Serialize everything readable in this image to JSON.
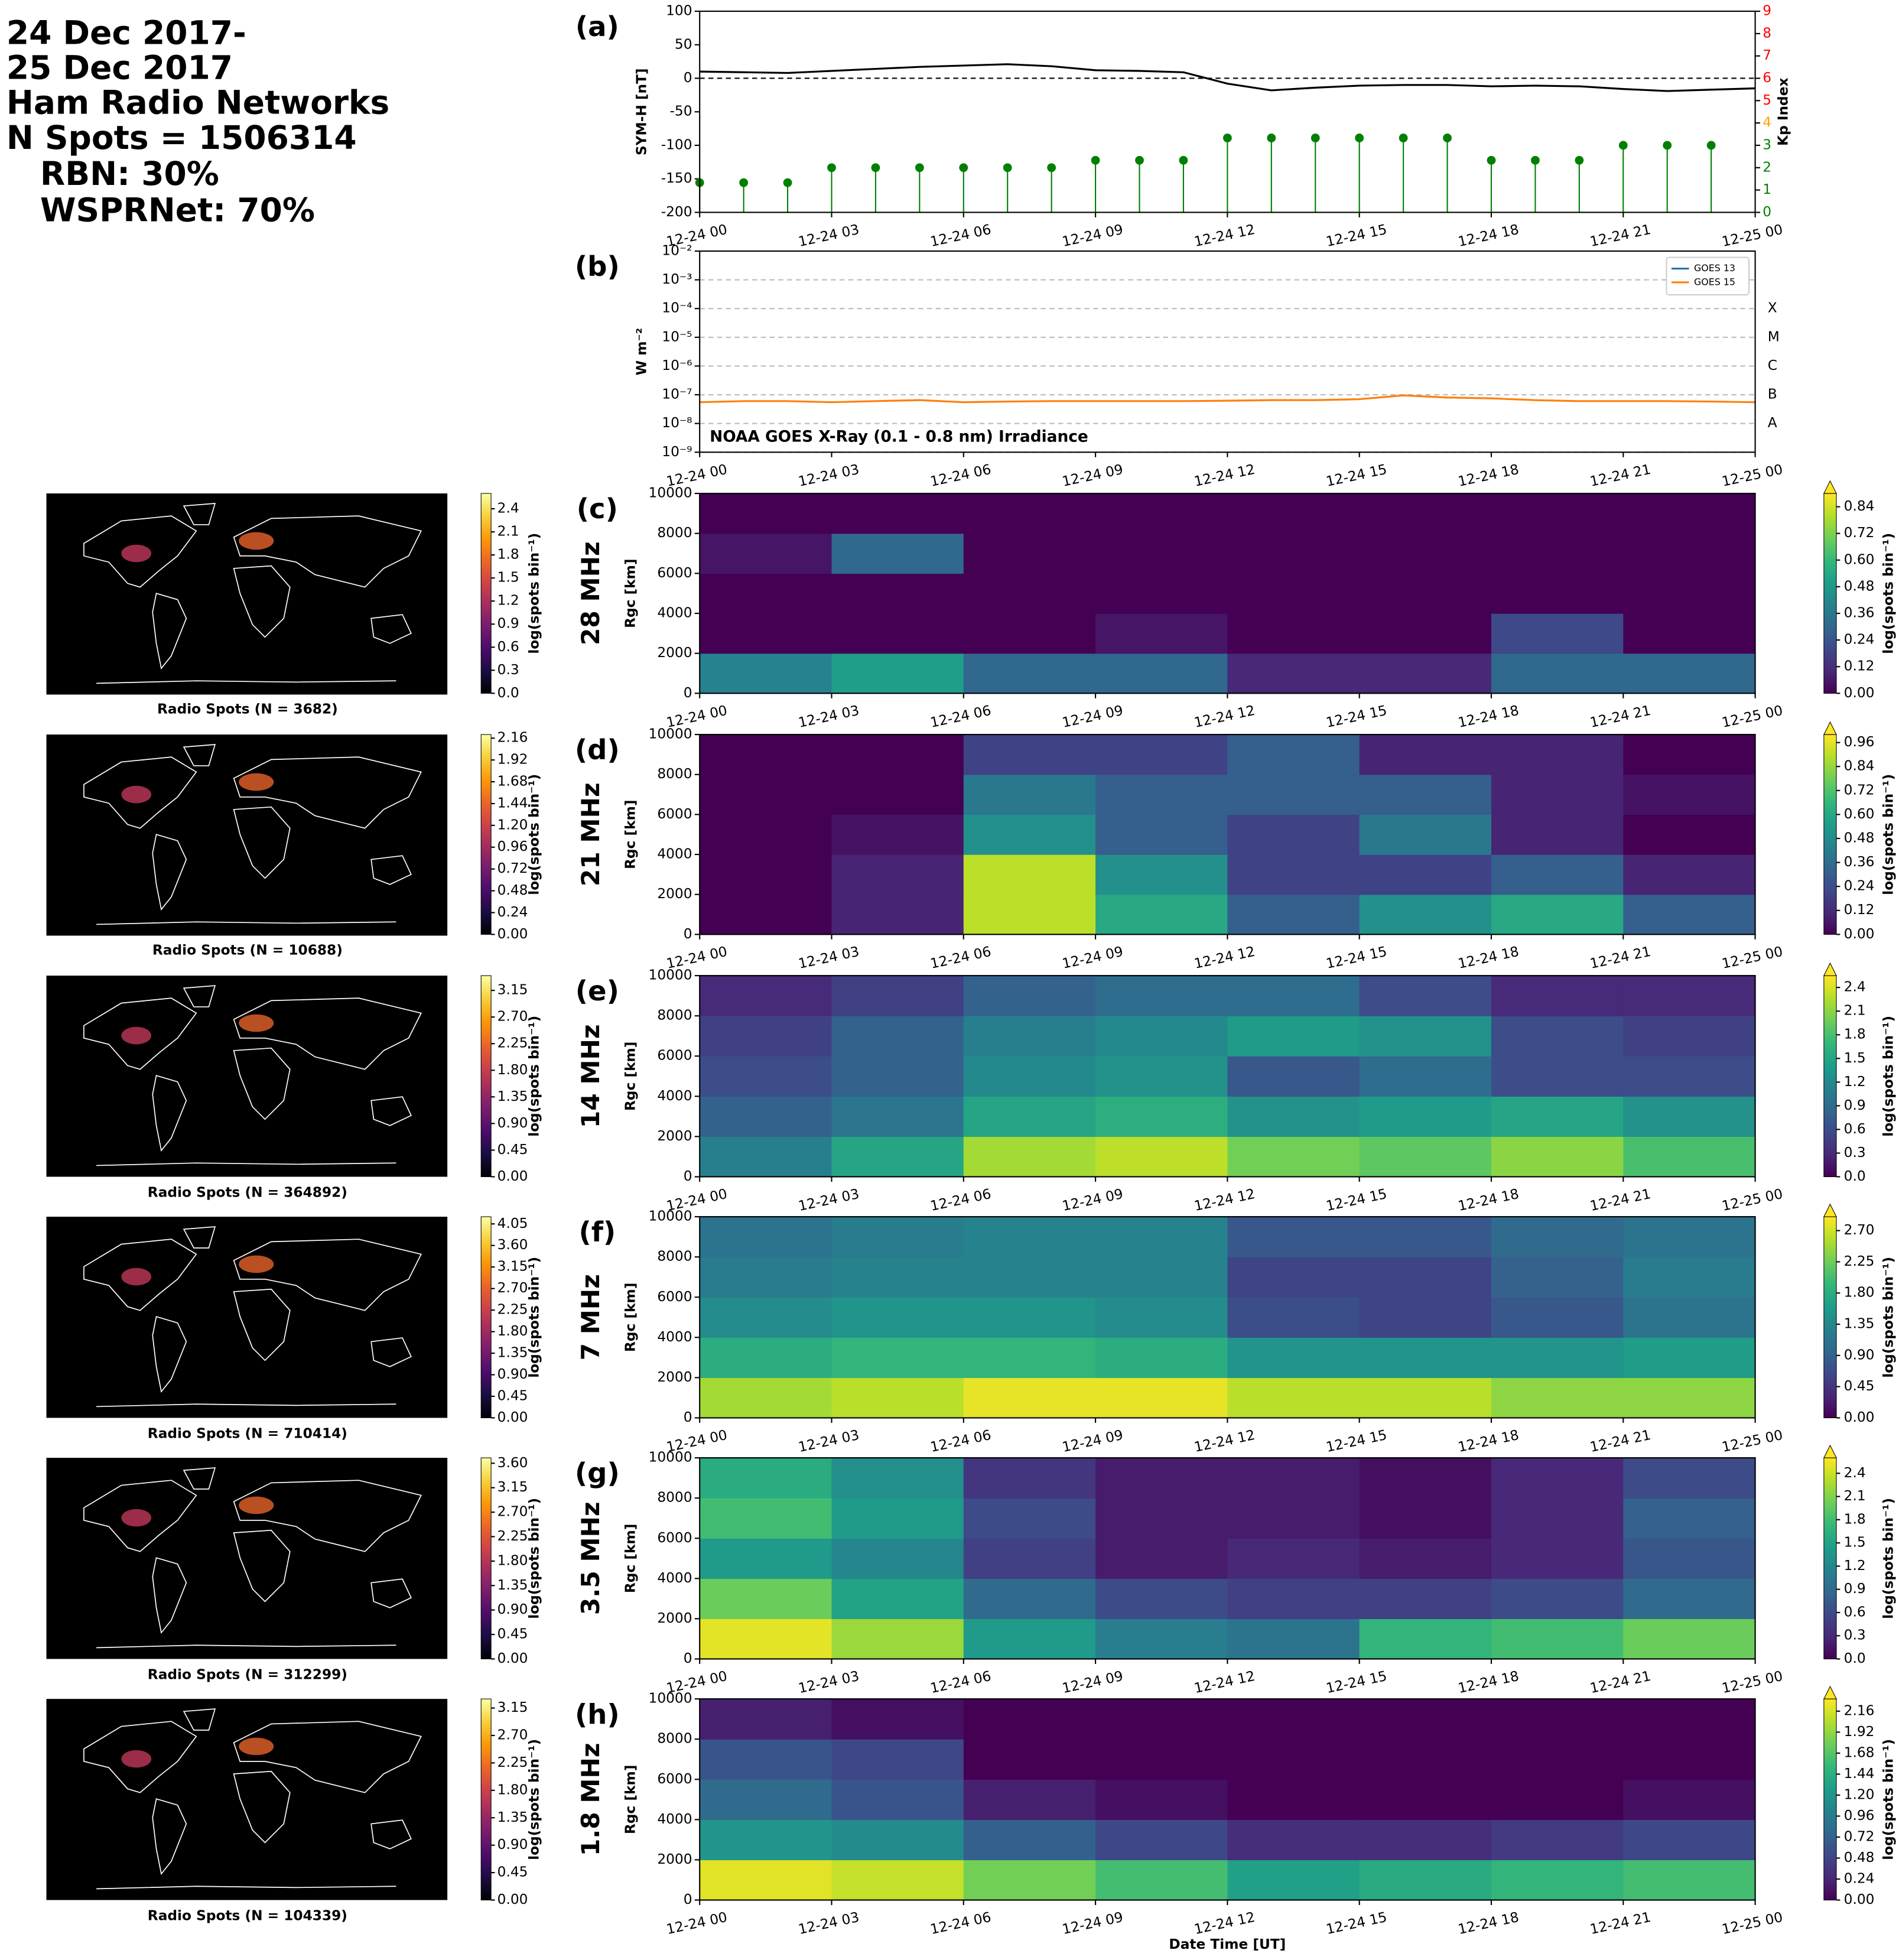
{
  "header": {
    "lines": [
      "24 Dec 2017-",
      "25 Dec 2017",
      "Ham Radio Networks",
      "N Spots = 1506314",
      "RBN: 30%",
      "WSPRNet: 70%"
    ]
  },
  "time_axis": {
    "xlim": [
      0,
      24
    ],
    "xlabel": "Date Time [UT]",
    "xticks": [
      {
        "value": 0,
        "label": "12-24 00"
      },
      {
        "value": 3,
        "label": "12-24 03"
      },
      {
        "value": 6,
        "label": "12-24 06"
      },
      {
        "value": 9,
        "label": "12-24 09"
      },
      {
        "value": 12,
        "label": "12-24 12"
      },
      {
        "value": 15,
        "label": "12-24 15"
      },
      {
        "value": 18,
        "label": "12-24 18"
      },
      {
        "value": 21,
        "label": "12-24 21"
      },
      {
        "value": 24,
        "label": "12-25 00"
      }
    ]
  },
  "chart_data": [
    {
      "type": "line",
      "label": "(a)",
      "ylabel": "SYM-H [nT]",
      "y2label": "Kp Index",
      "ylim": [
        -200,
        100
      ],
      "yticks": [
        -200,
        -150,
        -100,
        -50,
        0,
        50,
        100
      ],
      "y2lim": [
        0,
        9
      ],
      "y2ticks": [
        0,
        1,
        2,
        3,
        4,
        5,
        6,
        7,
        8,
        9
      ],
      "y2tick_colors": [
        "green",
        "green",
        "green",
        "green",
        "orange",
        "red",
        "red",
        "red",
        "red",
        "red"
      ],
      "series": [
        {
          "color": "#000000",
          "x": [
            0,
            1,
            2,
            3,
            4,
            5,
            6,
            7,
            8,
            9,
            10,
            11,
            12,
            13,
            14,
            15,
            16,
            17,
            18,
            19,
            20,
            21,
            22,
            23,
            24
          ],
          "values": [
            10,
            9,
            8,
            11,
            14,
            17,
            19,
            21,
            18,
            12,
            11,
            9,
            -8,
            -18,
            -14,
            -11,
            -10,
            -10,
            -12,
            -11,
            -12,
            -16,
            -19,
            -17,
            -15
          ]
        },
        {
          "color": "green",
          "axis": "y2",
          "x": [
            0,
            1,
            2,
            3,
            4,
            5,
            6,
            7,
            8,
            9,
            10,
            11,
            12,
            13,
            14,
            15,
            16,
            17,
            18,
            19,
            20,
            21,
            22,
            23
          ],
          "values": [
            1.33,
            1.33,
            1.33,
            2,
            2,
            2,
            2,
            2,
            2,
            2.33,
            2.33,
            2.33,
            3.33,
            3.33,
            3.33,
            3.33,
            3.33,
            3.33,
            2.33,
            2.33,
            2.33,
            3,
            3,
            3
          ]
        }
      ]
    },
    {
      "type": "line",
      "log_scale": true,
      "grid": true,
      "label": "(b)",
      "ylabel": "W m⁻²",
      "ylim": [
        1e-09,
        0.01
      ],
      "yticks": [
        {
          "value": 1e-09,
          "label": "10⁻⁹"
        },
        {
          "value": 1e-08,
          "label": "10⁻⁸"
        },
        {
          "value": 1e-07,
          "label": "10⁻⁷"
        },
        {
          "value": 1e-06,
          "label": "10⁻⁶"
        },
        {
          "value": 1e-05,
          "label": "10⁻⁵"
        },
        {
          "value": 0.0001,
          "label": "10⁻⁴"
        },
        {
          "value": 0.001,
          "label": "10⁻³"
        },
        {
          "value": 0.01,
          "label": "10⁻²"
        }
      ],
      "annotation": "NOAA GOES X-Ray (0.1 - 0.8 nm) Irradiance",
      "legend": "upper right",
      "class_labels": [
        {
          "value": 1e-08,
          "label": "A"
        },
        {
          "value": 1e-07,
          "label": "B"
        },
        {
          "value": 1e-06,
          "label": "C"
        },
        {
          "value": 1e-05,
          "label": "M"
        },
        {
          "value": 0.0001,
          "label": "X"
        }
      ],
      "series": [
        {
          "name": "GOES 13",
          "color": "#1f77b4",
          "x": [
            0,
            1,
            2,
            3,
            4,
            5,
            6,
            7,
            8,
            9,
            10,
            11,
            12,
            13,
            14,
            15,
            16,
            17,
            18,
            19,
            20,
            21,
            22,
            23,
            24
          ],
          "values": [
            null,
            null,
            null,
            null,
            null,
            null,
            null,
            null,
            null,
            null,
            null,
            null,
            null,
            null,
            null,
            null,
            null,
            null,
            null,
            null,
            null,
            null,
            null,
            null,
            null
          ]
        },
        {
          "name": "GOES 15",
          "color": "#ff7f0e",
          "x": [
            0,
            1,
            2,
            3,
            4,
            5,
            6,
            7,
            8,
            9,
            10,
            11,
            12,
            13,
            14,
            15,
            16,
            17,
            18,
            19,
            20,
            21,
            22,
            23,
            24
          ],
          "values": [
            5.5e-08,
            6e-08,
            6e-08,
            5.5e-08,
            6e-08,
            6.5e-08,
            5.5e-08,
            5.8e-08,
            6e-08,
            6e-08,
            6e-08,
            6e-08,
            6.2e-08,
            6.5e-08,
            6.5e-08,
            7e-08,
            9.5e-08,
            8e-08,
            7.5e-08,
            6.5e-08,
            6e-08,
            6e-08,
            6e-08,
            5.8e-08,
            5.5e-08
          ]
        }
      ]
    },
    {
      "type": "heatmap",
      "label": "(c)",
      "band": "28 MHz",
      "ylabel": "Rgc [km]",
      "ylim": [
        0,
        10000
      ],
      "yticks": [
        0,
        2000,
        4000,
        6000,
        8000,
        10000
      ],
      "x_bins": [
        0,
        3,
        6,
        9,
        12,
        15,
        18,
        21,
        24
      ],
      "y_bins": [
        0,
        2000,
        4000,
        6000,
        8000,
        10000
      ],
      "colormap": "viridis",
      "colorbar_label": "log(spots bin⁻¹)",
      "clim": [
        0,
        0.9
      ],
      "cticks": [
        {
          "value": 0,
          "label": "0.00"
        },
        0.12,
        0.24,
        0.36,
        0.48,
        {
          "value": 0.6,
          "label": "0.60"
        },
        0.72,
        0.84
      ],
      "z": [
        [
          0.4,
          0.5,
          0.3,
          0.3,
          0.1,
          0.1,
          0.3,
          0.3
        ],
        [
          0,
          0,
          0,
          0.05,
          0,
          0,
          0.2,
          0
        ],
        [
          0,
          0,
          0,
          0,
          0,
          0,
          0,
          0
        ],
        [
          0.05,
          0.3,
          0,
          0,
          0,
          0,
          0,
          0
        ],
        [
          0,
          0,
          0,
          0,
          0,
          0,
          0,
          0
        ]
      ],
      "map": {
        "caption": "Radio Spots (N = 3682)",
        "colormap": "inferno",
        "colorbar_label": "log(spots bin⁻¹)",
        "clim": [
          0,
          2.6
        ],
        "cticks": [
          {
            "value": 0,
            "label": "0.0"
          },
          0.3,
          0.6,
          0.9,
          1.2,
          1.5,
          1.8,
          2.1,
          2.4
        ]
      }
    },
    {
      "type": "heatmap",
      "label": "(d)",
      "band": "21 MHz",
      "ylabel": "Rgc [km]",
      "ylim": [
        0,
        10000
      ],
      "yticks": [
        0,
        2000,
        4000,
        6000,
        8000,
        10000
      ],
      "x_bins": [
        0,
        3,
        6,
        9,
        12,
        15,
        18,
        21,
        24
      ],
      "y_bins": [
        0,
        2000,
        4000,
        6000,
        8000,
        10000
      ],
      "colormap": "viridis",
      "colorbar_label": "log(spots bin⁻¹)",
      "clim": [
        0,
        1.0
      ],
      "cticks": [
        {
          "value": 0,
          "label": "0.00"
        },
        0.12,
        0.24,
        0.36,
        0.48,
        {
          "value": 0.6,
          "label": "0.60"
        },
        0.72,
        0.84,
        0.96
      ],
      "z": [
        [
          0,
          0.1,
          0.9,
          0.6,
          0.3,
          0.5,
          0.6,
          0.3
        ],
        [
          0,
          0.1,
          0.9,
          0.5,
          0.2,
          0.2,
          0.3,
          0.1
        ],
        [
          0,
          0.05,
          0.5,
          0.3,
          0.2,
          0.4,
          0.1,
          0
        ],
        [
          0,
          0,
          0.4,
          0.3,
          0.3,
          0.3,
          0.1,
          0.05
        ],
        [
          0,
          0,
          0.2,
          0.2,
          0.3,
          0.1,
          0.1,
          0
        ]
      ],
      "map": {
        "caption": "Radio Spots (N = 10688)",
        "colormap": "inferno",
        "colorbar_label": "log(spots bin⁻¹)",
        "clim": [
          0,
          2.2
        ],
        "cticks": [
          {
            "value": 0,
            "label": "0.00"
          },
          0.24,
          0.48,
          0.72,
          0.96,
          {
            "value": 1.2,
            "label": "1.20"
          },
          1.44,
          1.68,
          1.92,
          2.16
        ]
      }
    },
    {
      "type": "heatmap",
      "label": "(e)",
      "band": "14 MHz",
      "ylabel": "Rgc [km]",
      "ylim": [
        0,
        10000
      ],
      "yticks": [
        0,
        2000,
        4000,
        6000,
        8000,
        10000
      ],
      "x_bins": [
        0,
        3,
        6,
        9,
        12,
        15,
        18,
        21,
        24
      ],
      "y_bins": [
        0,
        2000,
        4000,
        6000,
        8000,
        10000
      ],
      "colormap": "viridis",
      "colorbar_label": "log(spots bin⁻¹)",
      "clim": [
        0,
        2.55
      ],
      "cticks": [
        {
          "value": 0,
          "label": "0.0"
        },
        0.3,
        0.6,
        0.9,
        1.2,
        1.5,
        1.8,
        2.1,
        2.4
      ],
      "z": [
        [
          1.1,
          1.5,
          2.2,
          2.3,
          2.0,
          1.9,
          2.1,
          1.8
        ],
        [
          0.8,
          1.0,
          1.5,
          1.6,
          1.3,
          1.4,
          1.5,
          1.3
        ],
        [
          0.6,
          0.8,
          1.2,
          1.3,
          0.7,
          0.9,
          0.6,
          0.6
        ],
        [
          0.5,
          0.8,
          1.1,
          1.2,
          1.4,
          1.3,
          0.6,
          0.5
        ],
        [
          0.3,
          0.5,
          0.8,
          0.9,
          0.9,
          0.6,
          0.3,
          0.3
        ]
      ],
      "map": {
        "caption": "Radio Spots (N = 364892)",
        "colormap": "inferno",
        "colorbar_label": "log(spots bin⁻¹)",
        "clim": [
          0,
          3.4
        ],
        "cticks": [
          {
            "value": 0,
            "label": "0.00"
          },
          0.45,
          {
            "value": 0.9,
            "label": "0.90"
          },
          1.35,
          {
            "value": 1.8,
            "label": "1.80"
          },
          2.25,
          {
            "value": 2.7,
            "label": "2.70"
          },
          3.15
        ]
      }
    },
    {
      "type": "heatmap",
      "label": "(f)",
      "band": "7 MHz",
      "ylabel": "Rgc [km]",
      "ylim": [
        0,
        10000
      ],
      "yticks": [
        0,
        2000,
        4000,
        6000,
        8000,
        10000
      ],
      "x_bins": [
        0,
        3,
        6,
        9,
        12,
        15,
        18,
        21,
        24
      ],
      "y_bins": [
        0,
        2000,
        4000,
        6000,
        8000,
        10000
      ],
      "colormap": "viridis",
      "colorbar_label": "log(spots bin⁻¹)",
      "clim": [
        0,
        2.9
      ],
      "cticks": [
        {
          "value": 0,
          "label": "0.00"
        },
        0.45,
        {
          "value": 0.9,
          "label": "0.90"
        },
        1.35,
        {
          "value": 1.8,
          "label": "1.80"
        },
        2.25,
        {
          "value": 2.7,
          "label": "2.70"
        }
      ],
      "z": [
        [
          2.5,
          2.6,
          2.8,
          2.8,
          2.6,
          2.6,
          2.4,
          2.4
        ],
        [
          1.8,
          1.9,
          1.9,
          1.8,
          1.5,
          1.5,
          1.5,
          1.6
        ],
        [
          1.4,
          1.5,
          1.5,
          1.4,
          0.7,
          0.6,
          0.8,
          1.1
        ],
        [
          1.2,
          1.3,
          1.3,
          1.3,
          0.6,
          0.6,
          0.9,
          1.2
        ],
        [
          1.1,
          1.2,
          1.3,
          1.3,
          0.8,
          0.8,
          1.0,
          1.1
        ]
      ],
      "map": {
        "caption": "Radio Spots (N = 710414)",
        "colormap": "inferno",
        "colorbar_label": "log(spots bin⁻¹)",
        "clim": [
          0,
          4.2
        ],
        "cticks": [
          {
            "value": 0,
            "label": "0.00"
          },
          0.45,
          {
            "value": 0.9,
            "label": "0.90"
          },
          1.35,
          {
            "value": 1.8,
            "label": "1.80"
          },
          2.25,
          {
            "value": 2.7,
            "label": "2.70"
          },
          3.15,
          {
            "value": 3.6,
            "label": "3.60"
          },
          4.05
        ]
      }
    },
    {
      "type": "heatmap",
      "label": "(g)",
      "band": "3.5 MHz",
      "ylabel": "Rgc [km]",
      "ylim": [
        0,
        10000
      ],
      "yticks": [
        0,
        2000,
        4000,
        6000,
        8000,
        10000
      ],
      "x_bins": [
        0,
        3,
        6,
        9,
        12,
        15,
        18,
        21,
        24
      ],
      "y_bins": [
        0,
        2000,
        4000,
        6000,
        8000,
        10000
      ],
      "colormap": "viridis",
      "colorbar_label": "log(spots bin⁻¹)",
      "clim": [
        0,
        2.6
      ],
      "cticks": [
        {
          "value": 0,
          "label": "0.0"
        },
        0.3,
        0.6,
        0.9,
        1.2,
        1.5,
        1.8,
        2.1,
        2.4
      ],
      "z": [
        [
          2.5,
          2.2,
          1.4,
          1.1,
          1.0,
          1.7,
          1.8,
          2.0
        ],
        [
          2.0,
          1.5,
          0.9,
          0.6,
          0.5,
          0.5,
          0.6,
          0.9
        ],
        [
          1.4,
          1.2,
          0.5,
          0.2,
          0.3,
          0.2,
          0.3,
          0.7
        ],
        [
          1.8,
          1.4,
          0.6,
          0.2,
          0.2,
          0.1,
          0.3,
          0.8
        ],
        [
          1.6,
          1.3,
          0.4,
          0.2,
          0.2,
          0.1,
          0.3,
          0.6
        ]
      ],
      "map": {
        "caption": "Radio Spots (N = 312299)",
        "colormap": "inferno",
        "colorbar_label": "log(spots bin⁻¹)",
        "clim": [
          0,
          3.7
        ],
        "cticks": [
          {
            "value": 0,
            "label": "0.00"
          },
          0.45,
          {
            "value": 0.9,
            "label": "0.90"
          },
          1.35,
          {
            "value": 1.8,
            "label": "1.80"
          },
          2.25,
          {
            "value": 2.7,
            "label": "2.70"
          },
          3.15,
          {
            "value": 3.6,
            "label": "3.60"
          }
        ]
      }
    },
    {
      "type": "heatmap",
      "label": "(h)",
      "band": "1.8 MHz",
      "ylabel": "Rgc [km]",
      "ylim": [
        0,
        10000
      ],
      "yticks": [
        0,
        2000,
        4000,
        6000,
        8000,
        10000
      ],
      "x_bins": [
        0,
        3,
        6,
        9,
        12,
        15,
        18,
        21,
        24
      ],
      "y_bins": [
        0,
        2000,
        4000,
        6000,
        8000,
        10000
      ],
      "colormap": "viridis",
      "colorbar_label": "log(spots bin⁻¹)",
      "clim": [
        0,
        2.3
      ],
      "cticks": [
        {
          "value": 0,
          "label": "0.00"
        },
        0.24,
        0.48,
        0.72,
        0.96,
        {
          "value": 1.2,
          "label": "1.20"
        },
        1.44,
        1.68,
        1.92,
        2.16
      ],
      "z": [
        [
          2.2,
          2.1,
          1.8,
          1.6,
          1.3,
          1.4,
          1.5,
          1.6
        ],
        [
          1.2,
          1.1,
          0.7,
          0.5,
          0.3,
          0.3,
          0.4,
          0.5
        ],
        [
          0.8,
          0.6,
          0.2,
          0.1,
          0,
          0,
          0,
          0.1
        ],
        [
          0.6,
          0.5,
          0,
          0,
          0,
          0,
          0,
          0
        ],
        [
          0.2,
          0.1,
          0,
          0,
          0,
          0,
          0,
          0
        ]
      ],
      "map": {
        "caption": "Radio Spots (N = 104339)",
        "colormap": "inferno",
        "colorbar_label": "log(spots bin⁻¹)",
        "clim": [
          0,
          3.3
        ],
        "cticks": [
          {
            "value": 0,
            "label": "0.00"
          },
          0.45,
          {
            "value": 0.9,
            "label": "0.90"
          },
          1.35,
          {
            "value": 1.8,
            "label": "1.80"
          },
          2.25,
          {
            "value": 2.7,
            "label": "2.70"
          },
          3.15
        ]
      }
    }
  ]
}
